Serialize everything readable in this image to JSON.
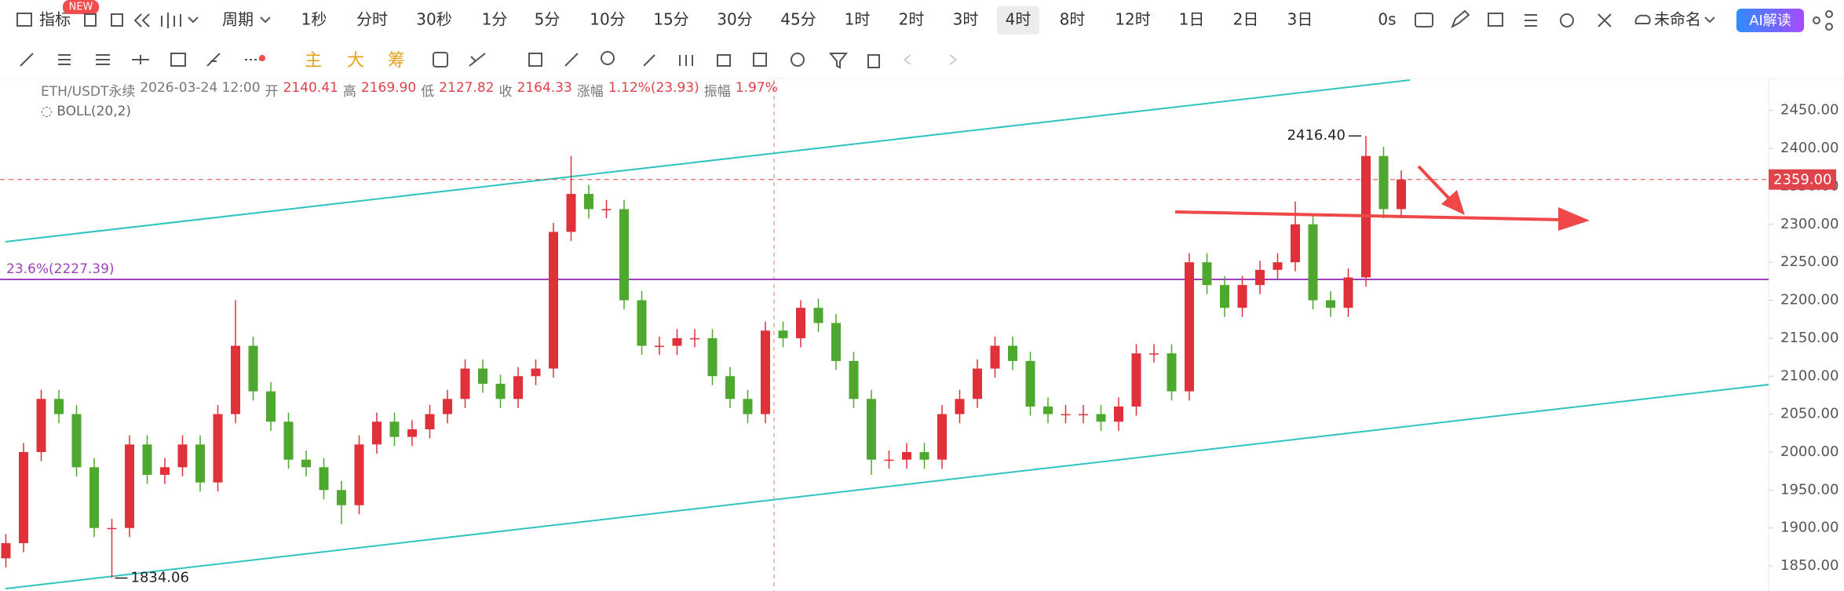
{
  "toolbar": {
    "indicator": "指标",
    "badge": "NEW",
    "period": "周期",
    "periods": [
      "1秒",
      "分时",
      "30秒",
      "1分",
      "5分",
      "10分",
      "15分",
      "30分",
      "45分",
      "1时",
      "2时",
      "3时",
      "4时",
      "8时",
      "12时",
      "1日",
      "2日",
      "3日"
    ],
    "countdown": "0s",
    "layout_name": "未命名",
    "ai_button": "AI解读",
    "main": "主",
    "big": "大",
    "chips": "筹"
  },
  "info": {
    "symbol": "ETH/USDT永续",
    "datetime": "2026-03-24 12:00",
    "fields": [
      {
        "label": "开",
        "value": "2140.41"
      },
      {
        "label": "高",
        "value": "2169.90"
      },
      {
        "label": "低",
        "value": "2127.82"
      },
      {
        "label": "收",
        "value": "2164.33"
      },
      {
        "label": "涨幅",
        "value": "1.12%(23.93)"
      },
      {
        "label": "振幅",
        "value": "1.97%"
      }
    ],
    "indicator": "BOLL(20,2)"
  },
  "chart_data": {
    "type": "candlestick",
    "up_color": "#e0313b",
    "down_color": "#4ea72e",
    "open": [
      1860,
      1880,
      2000,
      2070,
      2050,
      1980,
      1900,
      1900,
      2010,
      1970,
      1980,
      2010,
      1960,
      2050,
      2140,
      2080,
      2040,
      1990,
      1980,
      1950,
      1930,
      2010,
      2040,
      2020,
      2030,
      2050,
      2070,
      2110,
      2090,
      2070,
      2100,
      2110,
      2290,
      2340,
      2320,
      2320,
      2200,
      2140,
      2140,
      2150,
      2150,
      2100,
      2070,
      2050,
      2160,
      2150,
      2190,
      2170,
      2120,
      2070,
      1990,
      1990,
      2000,
      1990,
      2050,
      2070,
      2110,
      2140,
      2120,
      2060,
      2050,
      2050,
      2050,
      2040,
      2060,
      2130,
      2130,
      2080,
      2250,
      2220,
      2190,
      2220,
      2240,
      2250,
      2300,
      2200,
      2190,
      2230,
      2390,
      2320
    ],
    "high": [
      1892,
      2012,
      2082,
      2082,
      2062,
      1992,
      1912,
      2022,
      2022,
      1992,
      2022,
      2022,
      2062,
      2200,
      2152,
      2092,
      2052,
      2002,
      1992,
      1962,
      2022,
      2052,
      2052,
      2042,
      2062,
      2082,
      2122,
      2122,
      2102,
      2112,
      2122,
      2302,
      2390,
      2352,
      2332,
      2332,
      2212,
      2152,
      2162,
      2162,
      2162,
      2112,
      2082,
      2172,
      2172,
      2200,
      2202,
      2182,
      2132,
      2082,
      2002,
      2012,
      2012,
      2062,
      2082,
      2122,
      2152,
      2152,
      2132,
      2072,
      2062,
      2062,
      2062,
      2072,
      2142,
      2142,
      2142,
      2262,
      2262,
      2232,
      2232,
      2252,
      2262,
      2330,
      2312,
      2212,
      2242,
      2416.4,
      2402,
      2371
    ],
    "low": [
      1848,
      1868,
      1988,
      2038,
      1968,
      1888,
      1834.06,
      1888,
      1958,
      1958,
      1968,
      1948,
      1948,
      2038,
      2068,
      2028,
      1978,
      1968,
      1938,
      1905,
      1918,
      1998,
      2008,
      2008,
      2018,
      2038,
      2058,
      2078,
      2058,
      2058,
      2088,
      2098,
      2278,
      2308,
      2308,
      2188,
      2128,
      2128,
      2128,
      2138,
      2088,
      2058,
      2038,
      2038,
      2138,
      2138,
      2158,
      2108,
      2058,
      1970,
      1978,
      1978,
      1978,
      1978,
      2038,
      2058,
      2098,
      2108,
      2048,
      2038,
      2038,
      2038,
      2028,
      2028,
      2048,
      2118,
      2068,
      2068,
      2208,
      2178,
      2178,
      2208,
      2228,
      2238,
      2188,
      2178,
      2178,
      2218,
      2308,
      2308
    ],
    "close": [
      1880,
      2000,
      2070,
      2050,
      1980,
      1900,
      1900,
      2010,
      1970,
      1980,
      2010,
      1960,
      2050,
      2140,
      2080,
      2040,
      1990,
      1980,
      1950,
      1930,
      2010,
      2040,
      2020,
      2030,
      2050,
      2070,
      2110,
      2090,
      2070,
      2100,
      2110,
      2290,
      2340,
      2320,
      2320,
      2200,
      2140,
      2140,
      2150,
      2150,
      2100,
      2070,
      2050,
      2160,
      2150,
      2190,
      2170,
      2120,
      2070,
      1990,
      1990,
      2000,
      1990,
      2050,
      2070,
      2110,
      2140,
      2120,
      2060,
      2050,
      2050,
      2050,
      2040,
      2060,
      2130,
      2130,
      2080,
      2250,
      2220,
      2190,
      2220,
      2240,
      2250,
      2300,
      2200,
      2190,
      2230,
      2390,
      2320,
      2359
    ],
    "ylim": [
      1817,
      2490
    ],
    "yticks": [
      {
        "value": 1850,
        "label": "1850.00"
      },
      {
        "value": 1900,
        "label": "1900.00"
      },
      {
        "value": 1950,
        "label": "1950.00"
      },
      {
        "value": 2000,
        "label": "2000.00"
      },
      {
        "value": 2050,
        "label": "2050.00"
      },
      {
        "value": 2100,
        "label": "2100.00"
      },
      {
        "value": 2150,
        "label": "2150.00"
      },
      {
        "value": 2200,
        "label": "2200.00"
      },
      {
        "value": 2250,
        "label": "2250.00"
      },
      {
        "value": 2300,
        "label": "2300.00"
      },
      {
        "value": 2350,
        "label": "2350.00"
      },
      {
        "value": 2400,
        "label": "2400.00"
      },
      {
        "value": 2450,
        "label": "2450.00"
      }
    ],
    "last_price": {
      "value": 2359,
      "label": "2359.00"
    },
    "fib_level": {
      "value": 2227.39,
      "label": "23.6%(2227.39)"
    },
    "high_mark": {
      "value": 2416.4,
      "label": "2416.40"
    },
    "low_mark": {
      "value": 1834.06,
      "label": "1834.06"
    }
  }
}
